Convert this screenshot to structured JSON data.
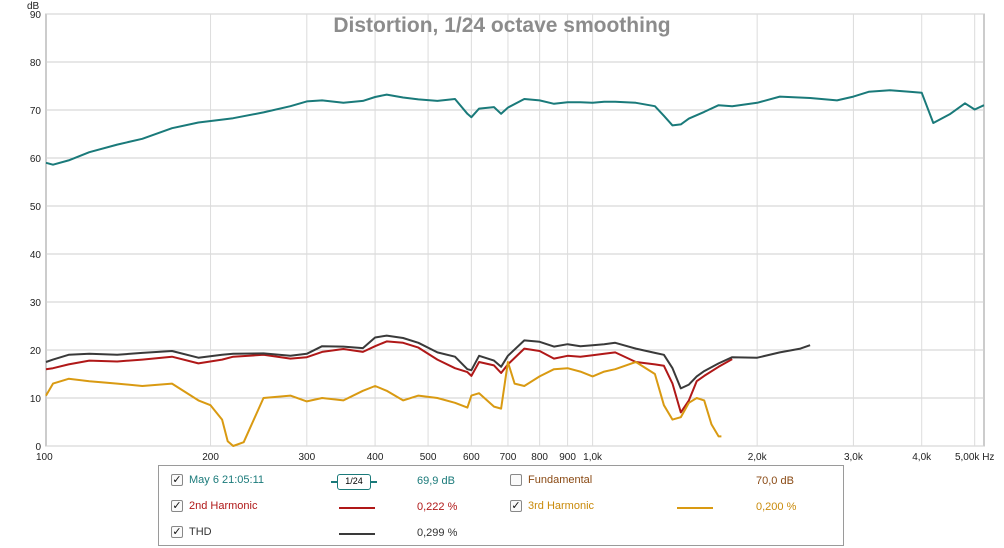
{
  "chart_data": {
    "type": "line",
    "title": "Distortion, 1/24 octave smoothing",
    "ylabel": "dB",
    "xunit": "Hz",
    "xscale": "log",
    "xlim": [
      100,
      5200
    ],
    "ylim": [
      0,
      90
    ],
    "grid": true,
    "yticks": [
      "0",
      "10",
      "20",
      "30",
      "40",
      "50",
      "60",
      "70",
      "80",
      "90"
    ],
    "xticks": [
      {
        "v": 100,
        "label": "100"
      },
      {
        "v": 200,
        "label": "200"
      },
      {
        "v": 300,
        "label": "300"
      },
      {
        "v": 400,
        "label": "400"
      },
      {
        "v": 500,
        "label": "500"
      },
      {
        "v": 600,
        "label": "600"
      },
      {
        "v": 700,
        "label": "700"
      },
      {
        "v": 800,
        "label": "800"
      },
      {
        "v": 900,
        "label": "900"
      },
      {
        "v": 1000,
        "label": "1,0k"
      },
      {
        "v": 2000,
        "label": "2,0k"
      },
      {
        "v": 3000,
        "label": "3,0k"
      },
      {
        "v": 4000,
        "label": "4,0k"
      },
      {
        "v": 5000,
        "label": "5,00k Hz"
      }
    ],
    "series": [
      {
        "name": "May 6 21:05:11",
        "color": "#1a7a7a",
        "x": [
          100,
          103,
          110,
          120,
          135,
          150,
          170,
          190,
          210,
          220,
          250,
          280,
          300,
          320,
          350,
          380,
          400,
          420,
          450,
          480,
          520,
          560,
          590,
          600,
          620,
          660,
          680,
          700,
          750,
          800,
          850,
          900,
          950,
          1000,
          1050,
          1100,
          1200,
          1300,
          1350,
          1400,
          1450,
          1500,
          1600,
          1700,
          1800,
          2000,
          2200,
          2500,
          2800,
          3000,
          3200,
          3500,
          3800,
          4000,
          4200,
          4500,
          4800,
          5000,
          5200
        ],
        "y": [
          59,
          58.6,
          59.5,
          61.2,
          62.8,
          64,
          66.2,
          67.4,
          68,
          68.3,
          69.5,
          70.8,
          71.8,
          72,
          71.5,
          71.9,
          72.7,
          73.2,
          72.6,
          72.2,
          71.9,
          72.3,
          69.2,
          68.5,
          70.3,
          70.6,
          69.2,
          70.5,
          72.3,
          72,
          71.3,
          71.6,
          71.6,
          71.5,
          71.7,
          71.7,
          71.5,
          70.8,
          68.8,
          66.8,
          67,
          68.2,
          69.6,
          71,
          70.8,
          71.5,
          72.8,
          72.5,
          72,
          72.8,
          73.8,
          74.1,
          73.8,
          73.6,
          67.3,
          69.1,
          71.4,
          70.1,
          71
        ]
      },
      {
        "name": "2nd Harmonic",
        "color": "#b01818",
        "x": [
          100,
          103,
          110,
          120,
          135,
          150,
          170,
          190,
          210,
          220,
          250,
          280,
          300,
          320,
          350,
          380,
          400,
          420,
          450,
          480,
          520,
          560,
          590,
          600,
          620,
          660,
          680,
          700,
          750,
          800,
          850,
          900,
          950,
          1000,
          1050,
          1100,
          1200,
          1300,
          1350,
          1400,
          1450,
          1500,
          1550,
          1600,
          1700,
          1800
        ],
        "y": [
          16,
          16.2,
          17,
          17.8,
          17.6,
          18,
          18.6,
          17.2,
          18,
          18.6,
          19,
          18.2,
          18.5,
          19.6,
          20.2,
          19.6,
          20.8,
          21.8,
          21.5,
          20.5,
          18,
          16.2,
          15.4,
          14.6,
          17.5,
          16.8,
          15.2,
          17,
          20.3,
          19.8,
          18.2,
          18.8,
          18.6,
          18.9,
          19.2,
          19.5,
          17.5,
          17,
          16.7,
          13,
          7,
          9.5,
          13.5,
          14.6,
          16.5,
          18.1
        ]
      },
      {
        "name": "3rd Harmonic",
        "color": "#d99a12",
        "x": [
          100,
          103,
          110,
          120,
          135,
          150,
          170,
          190,
          200,
          210,
          215,
          220,
          230,
          250,
          280,
          300,
          320,
          350,
          380,
          400,
          420,
          450,
          480,
          520,
          560,
          590,
          600,
          620,
          660,
          680,
          700,
          720,
          750,
          800,
          850,
          900,
          950,
          1000,
          1050,
          1100,
          1200,
          1300,
          1350,
          1400,
          1450,
          1500,
          1550,
          1600,
          1650,
          1700,
          1720
        ],
        "y": [
          10.5,
          13,
          14,
          13.5,
          13,
          12.5,
          13,
          9.5,
          8.5,
          5.5,
          1,
          0,
          0.8,
          10,
          10.5,
          9.3,
          10,
          9.5,
          11.5,
          12.5,
          11.5,
          9.5,
          10.5,
          10,
          9,
          8,
          10.5,
          11,
          8.2,
          7.8,
          17.5,
          13,
          12.5,
          14.5,
          16,
          16.2,
          15.5,
          14.5,
          15.5,
          16,
          17.5,
          15,
          8.5,
          5.5,
          6,
          9,
          10,
          9.5,
          4.5,
          2,
          2
        ]
      },
      {
        "name": "THD",
        "color": "#3a3a3a",
        "x": [
          100,
          103,
          110,
          120,
          135,
          150,
          170,
          190,
          210,
          220,
          250,
          280,
          300,
          320,
          350,
          380,
          400,
          420,
          450,
          480,
          520,
          560,
          590,
          600,
          620,
          660,
          680,
          700,
          750,
          800,
          850,
          900,
          950,
          1000,
          1050,
          1100,
          1200,
          1300,
          1350,
          1400,
          1450,
          1500,
          1550,
          1600,
          1700,
          1800,
          2000,
          2200,
          2400,
          2500
        ],
        "y": [
          17.5,
          18,
          19,
          19.2,
          19,
          19.4,
          19.8,
          18.4,
          19,
          19.2,
          19.3,
          18.8,
          19.2,
          20.8,
          20.7,
          20.4,
          22.6,
          23,
          22.5,
          21.5,
          19.5,
          18.6,
          16,
          15.8,
          18.8,
          17.8,
          16.5,
          18.8,
          22,
          21.7,
          20.7,
          21.2,
          20.8,
          21,
          21.2,
          21.5,
          20.3,
          19.4,
          19,
          16.2,
          12,
          12.8,
          14.5,
          15.6,
          17.2,
          18.5,
          18.4,
          19.5,
          20.3,
          21
        ]
      }
    ]
  },
  "legend": {
    "rows": [
      {
        "label": "May 6 21:05:11",
        "checked": true,
        "value": "69,9 dB",
        "color": "#1a7a7a",
        "smoothing": "1/24"
      },
      {
        "label": "2nd Harmonic",
        "checked": true,
        "value": "0,222 %",
        "color": "#b01818"
      },
      {
        "label": "THD",
        "checked": true,
        "value": "0,299 %",
        "color": "#3a3a3a"
      },
      {
        "label": "Fundamental",
        "checked": false,
        "value": "70,0 dB",
        "color": "#8a4a14"
      },
      {
        "label": "3rd Harmonic",
        "checked": true,
        "value": "0,200 %",
        "color": "#d99a12"
      }
    ],
    "check_mark": "✓"
  }
}
